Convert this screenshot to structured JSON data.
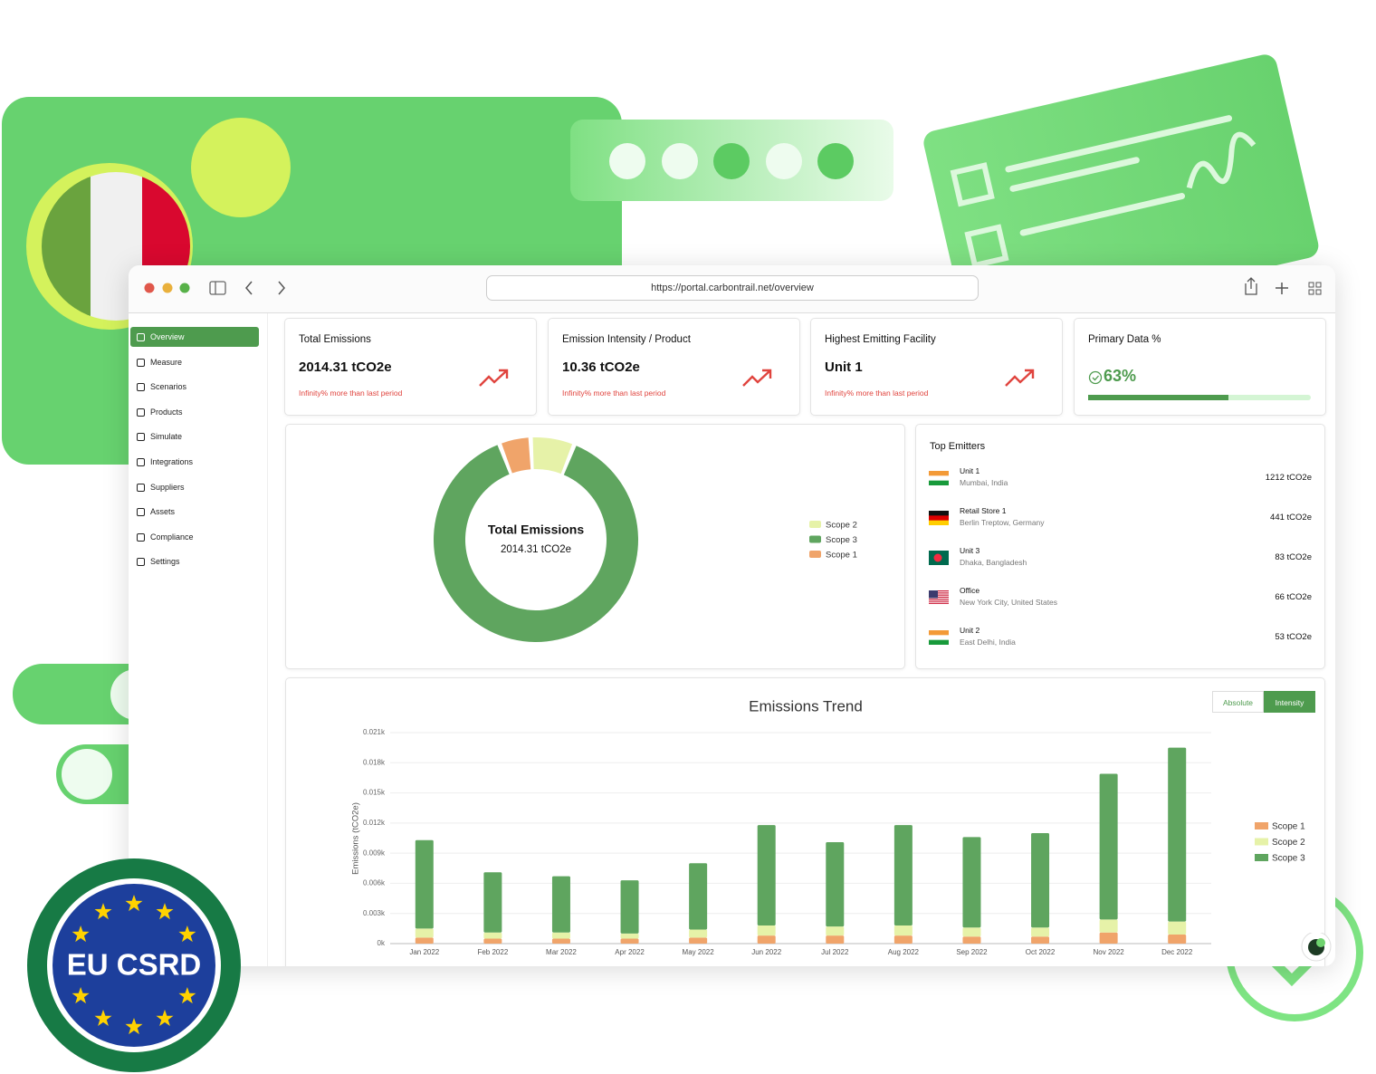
{
  "browser": {
    "url": "https://portal.carbontrail.net/overview"
  },
  "sidebar": {
    "items": [
      "Overview",
      "Measure",
      "Scenarios",
      "Products",
      "Simulate",
      "Integrations",
      "Suppliers",
      "Assets",
      "Compliance",
      "Settings"
    ]
  },
  "kpis": [
    {
      "title": "Total Emissions",
      "value": "2014.31 tCO2e",
      "note": "Infinity% more than last period"
    },
    {
      "title": "Emission Intensity / Product",
      "value": "10.36 tCO2e",
      "note": "Infinity% more than last period"
    },
    {
      "title": "Highest Emitting Facility",
      "value": "Unit 1",
      "note": "Infinity% more than last period"
    },
    {
      "title": "Primary Data %",
      "value": 63,
      "value_label": "63%"
    }
  ],
  "top_emitters": {
    "title": "Top Emitters",
    "rows": [
      {
        "name": "Unit 1",
        "location": "Mumbai, India",
        "amount": "1212 tCO2e"
      },
      {
        "name": "Retail Store 1",
        "location": "Berlin Treptow, Germany",
        "amount": "441 tCO2e"
      },
      {
        "name": "Unit 3",
        "location": "Dhaka, Bangladesh",
        "amount": "83 tCO2e"
      },
      {
        "name": "Office",
        "location": "New York City, United States",
        "amount": "66 tCO2e"
      },
      {
        "name": "Unit 2",
        "location": "East Delhi, India",
        "amount": "53 tCO2e"
      }
    ]
  },
  "badge": "EU CSRD",
  "chart_data": [
    {
      "type": "donut",
      "center_title": "Total Emissions",
      "center_value": "2014.31 tCO2e",
      "categories": [
        "Scope 2",
        "Scope 3",
        "Scope 1"
      ],
      "values": [
        140,
        1774,
        100
      ],
      "colors": [
        "#e6f2a8",
        "#5fa55f",
        "#f0a46a"
      ]
    },
    {
      "type": "bar",
      "stacked": true,
      "title": "Emissions Trend",
      "ylabel": "Emissions (tCO2e)",
      "toggles": [
        "Absolute",
        "Intensity"
      ],
      "active_toggle": 1,
      "categories": [
        "Jan 2022",
        "Feb 2022",
        "Mar 2022",
        "Apr 2022",
        "May 2022",
        "Jun 2022",
        "Jul 2022",
        "Aug 2022",
        "Sep 2022",
        "Oct 2022",
        "Nov 2022",
        "Dec 2022"
      ],
      "series": [
        {
          "name": "Scope 1",
          "color": "#f0a46a",
          "values": [
            0.6,
            0.5,
            0.5,
            0.5,
            0.6,
            0.8,
            0.8,
            0.8,
            0.7,
            0.7,
            1.1,
            0.9
          ]
        },
        {
          "name": "Scope 2",
          "color": "#e6f2a8",
          "values": [
            0.9,
            0.6,
            0.6,
            0.5,
            0.8,
            1.0,
            0.9,
            1.0,
            0.9,
            0.9,
            1.3,
            1.3
          ]
        },
        {
          "name": "Scope 3",
          "color": "#5fa55f",
          "values": [
            8.8,
            6.0,
            5.6,
            5.3,
            6.6,
            10.0,
            8.4,
            10.0,
            9.0,
            9.4,
            14.5,
            17.3
          ]
        }
      ],
      "ylim": [
        0,
        21
      ],
      "yticks": [
        {
          "value": 0,
          "label": "0k"
        },
        {
          "value": 3,
          "label": "0.003k"
        },
        {
          "value": 6,
          "label": "0.006k"
        },
        {
          "value": 9,
          "label": "0.009k"
        },
        {
          "value": 12,
          "label": "0.012k"
        },
        {
          "value": 15,
          "label": "0.015k"
        },
        {
          "value": 18,
          "label": "0.018k"
        },
        {
          "value": 21,
          "label": "0.021k"
        }
      ],
      "grid": true,
      "legend": "right"
    }
  ]
}
